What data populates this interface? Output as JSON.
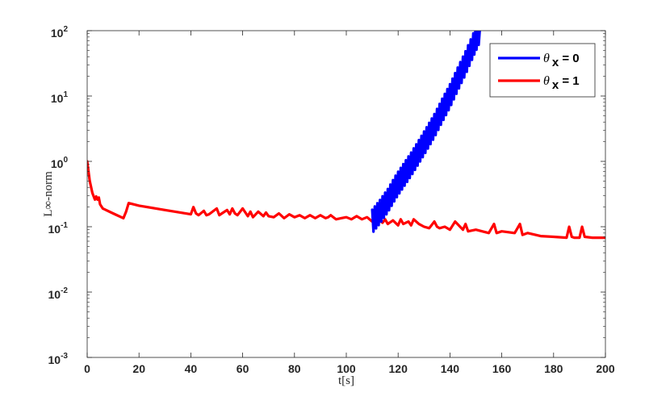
{
  "chart_data": {
    "type": "line",
    "title": "",
    "xlabel": "t[s]",
    "ylabel": "L∞-norm",
    "xlim": [
      0,
      200
    ],
    "ylim": [
      0.001,
      100
    ],
    "yscale": "log",
    "grid": false,
    "legend_position": "top-right",
    "x_ticks": [
      "0",
      "20",
      "40",
      "60",
      "80",
      "100",
      "120",
      "140",
      "160",
      "180",
      "200"
    ],
    "y_ticks": [
      {
        "base": "10",
        "exp": "-3"
      },
      {
        "base": "10",
        "exp": "-2"
      },
      {
        "base": "10",
        "exp": "-1"
      },
      {
        "base": "10",
        "exp": "0"
      },
      {
        "base": "10",
        "exp": "1"
      },
      {
        "base": "10",
        "exp": "2"
      }
    ],
    "series": [
      {
        "name_prefix": "θ",
        "name_sub": "x",
        "name_suffix": " = 0",
        "color": "#0000ff",
        "x": [
          110,
          113,
          116,
          119,
          122,
          125,
          128,
          131,
          134,
          137,
          140,
          143,
          146,
          149,
          151.5
        ],
        "y": [
          0.12,
          0.17,
          0.25,
          0.4,
          0.6,
          0.9,
          1.4,
          2.2,
          3.5,
          6,
          10,
          18,
          32,
          60,
          100
        ]
      },
      {
        "name_prefix": "θ",
        "name_sub": "x",
        "name_suffix": " = 1",
        "color": "#ff0000",
        "x": [
          0,
          1,
          2,
          3,
          3.5,
          4,
          4.5,
          5,
          6,
          10,
          14,
          15,
          16,
          20,
          30,
          40,
          41,
          42,
          43,
          45,
          46,
          47,
          50,
          51,
          52,
          54,
          55,
          56,
          57,
          58,
          60,
          62,
          63,
          64,
          66,
          68,
          69,
          70,
          72,
          74,
          76,
          78,
          80,
          82,
          84,
          86,
          88,
          90,
          92,
          93,
          94,
          96,
          98,
          100,
          102,
          104,
          106,
          108,
          110,
          112,
          114,
          115,
          116,
          118,
          120,
          121,
          122,
          124,
          125,
          126,
          128,
          130,
          132,
          134,
          135,
          136,
          138,
          140,
          142,
          145,
          146,
          147,
          150,
          155,
          157,
          158,
          160,
          165,
          167,
          168,
          170,
          175,
          180,
          185,
          186,
          187,
          188,
          190,
          191,
          192,
          195,
          200
        ],
        "y": [
          1.0,
          0.5,
          0.33,
          0.26,
          0.29,
          0.26,
          0.28,
          0.22,
          0.19,
          0.16,
          0.135,
          0.17,
          0.23,
          0.21,
          0.18,
          0.155,
          0.2,
          0.16,
          0.15,
          0.175,
          0.15,
          0.155,
          0.19,
          0.15,
          0.16,
          0.18,
          0.155,
          0.19,
          0.16,
          0.15,
          0.19,
          0.145,
          0.17,
          0.14,
          0.17,
          0.145,
          0.165,
          0.145,
          0.14,
          0.16,
          0.135,
          0.155,
          0.14,
          0.15,
          0.135,
          0.15,
          0.135,
          0.15,
          0.135,
          0.14,
          0.15,
          0.13,
          0.135,
          0.14,
          0.13,
          0.145,
          0.13,
          0.14,
          0.12,
          0.13,
          0.115,
          0.13,
          0.11,
          0.125,
          0.105,
          0.13,
          0.11,
          0.12,
          0.105,
          0.13,
          0.11,
          0.1,
          0.095,
          0.12,
          0.1,
          0.095,
          0.1,
          0.09,
          0.12,
          0.09,
          0.11,
          0.085,
          0.09,
          0.08,
          0.11,
          0.08,
          0.085,
          0.08,
          0.11,
          0.075,
          0.08,
          0.072,
          0.07,
          0.068,
          0.1,
          0.07,
          0.068,
          0.068,
          0.1,
          0.07,
          0.068,
          0.068
        ]
      }
    ]
  }
}
